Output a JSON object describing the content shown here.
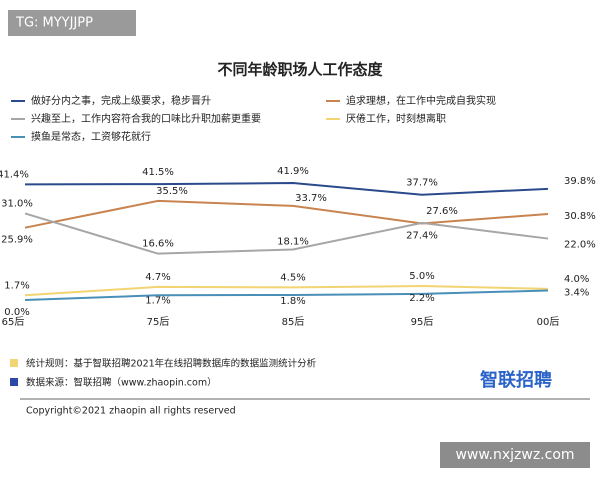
{
  "watermark": "TG: MYYJJPP",
  "chart_data": {
    "type": "line",
    "title": "不同年龄职场人工作态度",
    "categories": [
      "65后",
      "75后",
      "85后",
      "95后",
      "00后"
    ],
    "series": [
      {
        "name": "做好分内之事，完成上级要求，稳步晋升",
        "color": "#2b4a8b",
        "values": [
          41.4,
          41.5,
          41.9,
          37.7,
          39.8
        ],
        "value_labels": [
          "41.4%",
          "41.5%",
          "41.9%",
          "37.7%",
          "39.8%"
        ]
      },
      {
        "name": "追求理想，在工作中完成自我实现",
        "color": "#c8834f",
        "values": [
          25.9,
          35.5,
          33.7,
          27.4,
          30.8
        ],
        "value_labels": [
          "25.9%",
          "35.5%",
          "33.7%",
          "27.4%",
          "30.8%"
        ]
      },
      {
        "name": "兴趣至上，工作内容符合我的口味比升职加薪更重要",
        "color": "#a6a6a6",
        "values": [
          31.0,
          16.6,
          18.1,
          27.6,
          22.0
        ],
        "value_labels": [
          "31.0%",
          "16.6%",
          "18.1%",
          "27.6%",
          "22.0%"
        ]
      },
      {
        "name": "厌倦工作，时刻想离职",
        "color": "#f2d472",
        "values": [
          1.7,
          4.7,
          4.5,
          5.0,
          4.0
        ],
        "value_labels": [
          "1.7%",
          "4.7%",
          "4.5%",
          "5.0%",
          "4.0%"
        ]
      },
      {
        "name": "摸鱼是常态，工资够花就行",
        "color": "#4a8fb8",
        "values": [
          0.0,
          1.7,
          1.8,
          2.2,
          3.4
        ],
        "value_labels": [
          "0.0%",
          "1.7%",
          "1.8%",
          "2.2%",
          "3.4%"
        ]
      }
    ]
  },
  "footer": {
    "rule": "统计规则：基于智联招聘2021年在线招聘数据库的数据监测统计分析",
    "source": "数据来源：智联招聘（www.zhaopin.com）",
    "logo": "智联招聘",
    "copyright": "Copyright©2021 zhaopin  all rights reserved",
    "site": "www.nxjzwz.com"
  }
}
